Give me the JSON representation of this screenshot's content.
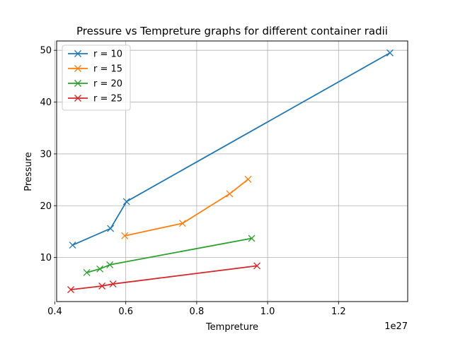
{
  "chart_data": {
    "type": "line",
    "title": "Pressure vs Tempreture graphs for different container radii",
    "xlabel": "Tempreture",
    "ylabel": "Pressure",
    "x_offset_label": "1e27",
    "xlim": [
      0.405,
      1.395
    ],
    "ylim": [
      1.5,
      51.8
    ],
    "x_ticks": [
      0.4,
      0.6,
      0.8,
      1.0,
      1.2
    ],
    "x_tick_labels": [
      "0.4",
      "0.6",
      "0.8",
      "1.0",
      "1.2"
    ],
    "y_ticks": [
      10,
      20,
      30,
      40,
      50
    ],
    "y_tick_labels": [
      "10",
      "20",
      "30",
      "40",
      "50"
    ],
    "grid": true,
    "legend_position": "top-left",
    "marker": "x",
    "series": [
      {
        "name": "r = 10",
        "color": "#1f77b4",
        "x": [
          0.45,
          0.557,
          0.602,
          1.345
        ],
        "y": [
          12.4,
          15.6,
          20.8,
          49.5
        ]
      },
      {
        "name": "r = 15",
        "color": "#ff7f0e",
        "x": [
          0.597,
          0.76,
          0.893,
          0.945
        ],
        "y": [
          14.2,
          16.6,
          22.3,
          25.1
        ]
      },
      {
        "name": "r = 20",
        "color": "#2ca02c",
        "x": [
          0.49,
          0.527,
          0.555,
          0.955
        ],
        "y": [
          7.1,
          7.8,
          8.6,
          13.7
        ]
      },
      {
        "name": "r = 25",
        "color": "#d62728",
        "x": [
          0.445,
          0.533,
          0.564,
          0.97
        ],
        "y": [
          3.8,
          4.5,
          4.9,
          8.4
        ]
      }
    ]
  }
}
